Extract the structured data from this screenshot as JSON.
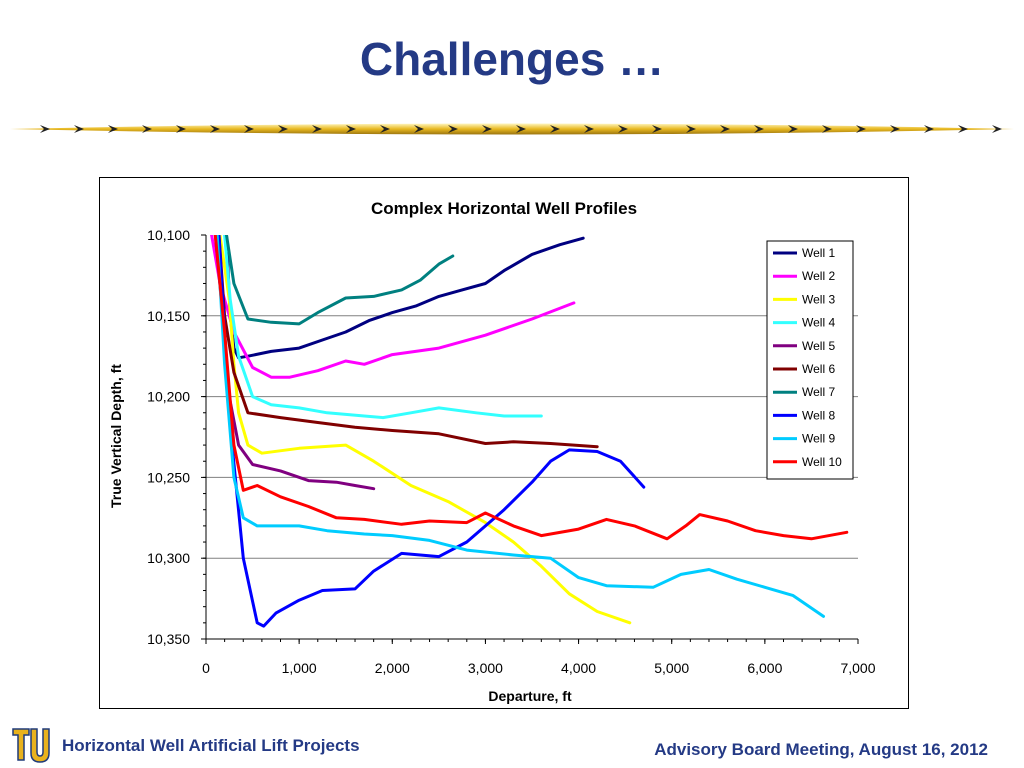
{
  "slide": {
    "title": "Challenges …",
    "footer_left": "Horizontal Well Artificial Lift Projects",
    "footer_right": "Advisory Board Meeting, August 16, 2012",
    "logo_icon": "tu-logo-icon"
  },
  "colors": {
    "title": "#243a85",
    "logo_gold": "#e9b21c",
    "logo_navy": "#1f3a7a"
  },
  "chart_data": {
    "type": "line",
    "title": "Complex Horizontal Well Profiles",
    "xlabel": "Departure, ft",
    "ylabel": "True Vertical Depth, ft",
    "xlim": [
      0,
      7000
    ],
    "ylim": [
      10350,
      10100
    ],
    "y_inverted": true,
    "xticks": [
      0,
      1000,
      2000,
      3000,
      4000,
      5000,
      6000,
      7000
    ],
    "xtick_labels": [
      "0",
      "1,000",
      "2,000",
      "3,000",
      "4,000",
      "5,000",
      "6,000",
      "7,000"
    ],
    "yticks": [
      10100,
      10150,
      10200,
      10250,
      10300,
      10350
    ],
    "ytick_labels": [
      "10,100",
      "10,150",
      "10,200",
      "10,250",
      "10,300",
      "10,350"
    ],
    "grid": "horizontal",
    "legend_position": "right",
    "series": [
      {
        "name": "Well 1",
        "color": "#000080",
        "points": [
          [
            220,
            10100
          ],
          [
            260,
            10150
          ],
          [
            300,
            10170
          ],
          [
            350,
            10176
          ],
          [
            450,
            10175
          ],
          [
            700,
            10172
          ],
          [
            1000,
            10170
          ],
          [
            1250,
            10165
          ],
          [
            1500,
            10160
          ],
          [
            1750,
            10153
          ],
          [
            2000,
            10148
          ],
          [
            2250,
            10144
          ],
          [
            2500,
            10138
          ],
          [
            2750,
            10134
          ],
          [
            3000,
            10130
          ],
          [
            3200,
            10122
          ],
          [
            3500,
            10112
          ],
          [
            3800,
            10106
          ],
          [
            4050,
            10102
          ]
        ]
      },
      {
        "name": "Well 2",
        "color": "#ff00ff",
        "points": [
          [
            60,
            10100
          ],
          [
            150,
            10130
          ],
          [
            300,
            10160
          ],
          [
            500,
            10182
          ],
          [
            700,
            10188
          ],
          [
            900,
            10188
          ],
          [
            1200,
            10184
          ],
          [
            1500,
            10178
          ],
          [
            1700,
            10180
          ],
          [
            2000,
            10174
          ],
          [
            2500,
            10170
          ],
          [
            3000,
            10162
          ],
          [
            3500,
            10152
          ],
          [
            3950,
            10142
          ]
        ]
      },
      {
        "name": "Well 3",
        "color": "#ffff00",
        "points": [
          [
            150,
            10100
          ],
          [
            250,
            10140
          ],
          [
            300,
            10180
          ],
          [
            350,
            10210
          ],
          [
            450,
            10230
          ],
          [
            600,
            10235
          ],
          [
            1000,
            10232
          ],
          [
            1500,
            10230
          ],
          [
            1800,
            10240
          ],
          [
            2200,
            10255
          ],
          [
            2600,
            10265
          ],
          [
            3000,
            10278
          ],
          [
            3300,
            10290
          ],
          [
            3600,
            10305
          ],
          [
            3900,
            10322
          ],
          [
            4200,
            10333
          ],
          [
            4550,
            10340
          ]
        ]
      },
      {
        "name": "Well 4",
        "color": "#33ffff",
        "points": [
          [
            200,
            10100
          ],
          [
            260,
            10140
          ],
          [
            350,
            10175
          ],
          [
            500,
            10200
          ],
          [
            700,
            10205
          ],
          [
            1000,
            10207
          ],
          [
            1300,
            10210
          ],
          [
            1700,
            10212
          ],
          [
            1900,
            10213
          ],
          [
            2200,
            10210
          ],
          [
            2500,
            10207
          ],
          [
            2900,
            10210
          ],
          [
            3200,
            10212
          ],
          [
            3600,
            10212
          ]
        ]
      },
      {
        "name": "Well 5",
        "color": "#800080",
        "points": [
          [
            100,
            10100
          ],
          [
            180,
            10150
          ],
          [
            250,
            10200
          ],
          [
            350,
            10230
          ],
          [
            500,
            10242
          ],
          [
            800,
            10246
          ],
          [
            1100,
            10252
          ],
          [
            1400,
            10253
          ],
          [
            1600,
            10255
          ],
          [
            1800,
            10257
          ]
        ]
      },
      {
        "name": "Well 6",
        "color": "#800000",
        "points": [
          [
            140,
            10100
          ],
          [
            200,
            10150
          ],
          [
            300,
            10185
          ],
          [
            450,
            10210
          ],
          [
            800,
            10213
          ],
          [
            1200,
            10216
          ],
          [
            1600,
            10219
          ],
          [
            2000,
            10221
          ],
          [
            2500,
            10223
          ],
          [
            3000,
            10229
          ],
          [
            3300,
            10228
          ],
          [
            3700,
            10229
          ],
          [
            4200,
            10231
          ]
        ]
      },
      {
        "name": "Well 7",
        "color": "#008080",
        "points": [
          [
            220,
            10100
          ],
          [
            300,
            10130
          ],
          [
            450,
            10152
          ],
          [
            700,
            10154
          ],
          [
            1000,
            10155
          ],
          [
            1200,
            10148
          ],
          [
            1500,
            10139
          ],
          [
            1800,
            10138
          ],
          [
            2100,
            10134
          ],
          [
            2300,
            10128
          ],
          [
            2500,
            10118
          ],
          [
            2650,
            10113
          ]
        ]
      },
      {
        "name": "Well 8",
        "color": "#0000ff",
        "points": [
          [
            140,
            10100
          ],
          [
            200,
            10160
          ],
          [
            280,
            10230
          ],
          [
            400,
            10300
          ],
          [
            550,
            10340
          ],
          [
            620,
            10342
          ],
          [
            750,
            10334
          ],
          [
            1000,
            10326
          ],
          [
            1250,
            10320
          ],
          [
            1600,
            10319
          ],
          [
            1800,
            10308
          ],
          [
            2100,
            10297
          ],
          [
            2500,
            10299
          ],
          [
            2800,
            10290
          ],
          [
            3200,
            10270
          ],
          [
            3500,
            10253
          ],
          [
            3700,
            10240
          ],
          [
            3900,
            10233
          ],
          [
            4200,
            10234
          ],
          [
            4450,
            10240
          ],
          [
            4700,
            10256
          ]
        ]
      },
      {
        "name": "Well 9",
        "color": "#00ccff",
        "points": [
          [
            120,
            10100
          ],
          [
            200,
            10180
          ],
          [
            300,
            10250
          ],
          [
            400,
            10275
          ],
          [
            550,
            10280
          ],
          [
            1000,
            10280
          ],
          [
            1300,
            10283
          ],
          [
            1700,
            10285
          ],
          [
            2000,
            10286
          ],
          [
            2400,
            10289
          ],
          [
            2800,
            10295
          ],
          [
            3300,
            10298
          ],
          [
            3700,
            10300
          ],
          [
            4000,
            10312
          ],
          [
            4300,
            10317
          ],
          [
            4800,
            10318
          ],
          [
            5100,
            10310
          ],
          [
            5400,
            10307
          ],
          [
            5700,
            10313
          ],
          [
            6000,
            10318
          ],
          [
            6300,
            10323
          ],
          [
            6630,
            10336
          ]
        ]
      },
      {
        "name": "Well 10",
        "color": "#ff0000",
        "points": [
          [
            100,
            10100
          ],
          [
            200,
            10160
          ],
          [
            300,
            10230
          ],
          [
            400,
            10258
          ],
          [
            550,
            10255
          ],
          [
            800,
            10262
          ],
          [
            1100,
            10268
          ],
          [
            1400,
            10275
          ],
          [
            1700,
            10276
          ],
          [
            2100,
            10279
          ],
          [
            2400,
            10277
          ],
          [
            2800,
            10278
          ],
          [
            3000,
            10272
          ],
          [
            3300,
            10280
          ],
          [
            3600,
            10286
          ],
          [
            4000,
            10282
          ],
          [
            4300,
            10276
          ],
          [
            4600,
            10280
          ],
          [
            4950,
            10288
          ],
          [
            5150,
            10280
          ],
          [
            5300,
            10273
          ],
          [
            5600,
            10277
          ],
          [
            5900,
            10283
          ],
          [
            6200,
            10286
          ],
          [
            6500,
            10288
          ],
          [
            6880,
            10284
          ]
        ]
      }
    ]
  }
}
